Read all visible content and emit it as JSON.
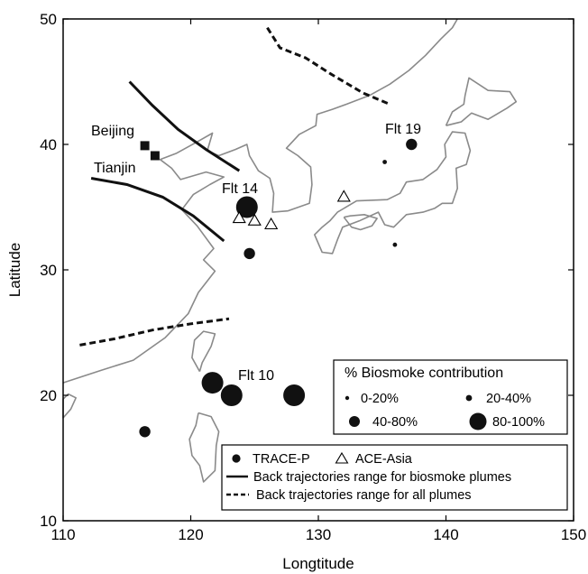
{
  "map": {
    "x_axis_label": "Longtitude",
    "y_axis_label": "Latitude",
    "x_range": [
      110,
      150
    ],
    "y_range": [
      10,
      50
    ],
    "x_ticks": [
      "110",
      "120",
      "130",
      "140",
      "150"
    ],
    "y_ticks": [
      "10",
      "20",
      "30",
      "40",
      "50"
    ]
  },
  "cities": [
    {
      "name": "Beijing",
      "lon": 116.4,
      "lat": 39.9
    },
    {
      "name": "Tianjin",
      "lon": 117.2,
      "lat": 39.1
    }
  ],
  "flight_labels": [
    {
      "text": "Flt 19",
      "lon": 136.7,
      "lat": 40.9
    },
    {
      "text": "Flt 14",
      "lon": 124.3,
      "lat": 36.2
    },
    {
      "text": "Flt 10",
      "lon": 127.1,
      "lat": 21.2
    }
  ],
  "trace_p_points": [
    {
      "lon": 137.3,
      "lat": 40.0,
      "contribution": "40-80%"
    },
    {
      "lon": 135.2,
      "lat": 38.6,
      "contribution": "0-20%"
    },
    {
      "lon": 136.0,
      "lat": 32.0,
      "contribution": "0-20%"
    },
    {
      "lon": 124.4,
      "lat": 35.0,
      "contribution": "80-100%"
    },
    {
      "lon": 124.6,
      "lat": 31.3,
      "contribution": "40-80%"
    },
    {
      "lon": 121.7,
      "lat": 21.0,
      "contribution": "80-100%"
    },
    {
      "lon": 123.2,
      "lat": 20.0,
      "contribution": "80-100%"
    },
    {
      "lon": 128.1,
      "lat": 20.0,
      "contribution": "80-100%"
    },
    {
      "lon": 116.4,
      "lat": 17.1,
      "contribution": "40-80%"
    }
  ],
  "ace_asia_points": [
    {
      "lon": 123.8,
      "lat": 34.1
    },
    {
      "lon": 125.0,
      "lat": 33.9
    },
    {
      "lon": 126.3,
      "lat": 33.6
    },
    {
      "lon": 132.0,
      "lat": 35.8
    }
  ],
  "trajectories": {
    "biosmoke": [
      [
        [
          115.2,
          45.0
        ],
        [
          117.0,
          43.1
        ],
        [
          119.0,
          41.2
        ],
        [
          121.2,
          39.6
        ],
        [
          123.8,
          37.9
        ]
      ],
      [
        [
          112.2,
          37.3
        ],
        [
          115.0,
          36.8
        ],
        [
          117.8,
          35.8
        ],
        [
          120.2,
          34.3
        ],
        [
          122.6,
          32.3
        ]
      ]
    ],
    "all_plumes": [
      [
        [
          126.0,
          49.3
        ],
        [
          127.0,
          47.7
        ],
        [
          129.0,
          46.9
        ],
        [
          131.0,
          45.6
        ],
        [
          133.5,
          44.1
        ],
        [
          135.6,
          43.2
        ]
      ],
      [
        [
          111.3,
          24.0
        ],
        [
          114.0,
          24.5
        ],
        [
          117.0,
          25.2
        ],
        [
          120.0,
          25.7
        ],
        [
          123.0,
          26.1
        ]
      ]
    ]
  },
  "size_legend": {
    "title": "% Biosmoke contribution",
    "items": [
      {
        "label": "0-20%"
      },
      {
        "label": "20-40%"
      },
      {
        "label": "40-80%"
      },
      {
        "label": "80-100%"
      }
    ]
  },
  "symbol_legend": {
    "trace_p": "TRACE-P",
    "ace_asia": "ACE-Asia",
    "biosmoke_line": "Back trajectories range for biosmoke plumes",
    "all_line": "Back trajectories range for all plumes"
  },
  "colors": {
    "coastline": "#8a8a8a",
    "marker": "#111111",
    "line": "#111111"
  }
}
